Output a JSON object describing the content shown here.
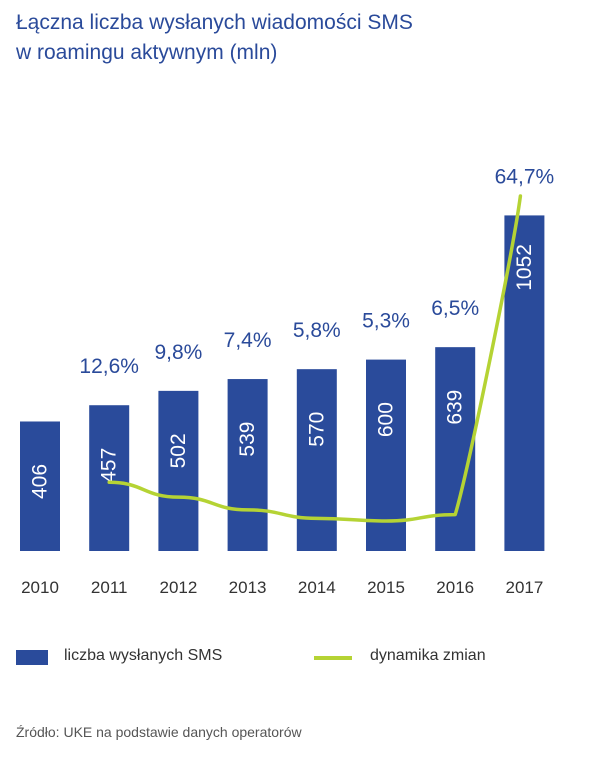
{
  "title_line1": "Łączna liczba wysłanych wiadomości SMS",
  "title_line2": "w roamingu aktywnym (mln)",
  "legend": {
    "bars_label": "liczba wysłanych SMS",
    "line_label": "dynamika zmian"
  },
  "source": "Źródło: UKE na podstawie danych operatorów",
  "colors": {
    "bar": "#2a4b9b",
    "line": "#b5d334",
    "title": "#2a4a9a",
    "growth_label": "#2a4a9a",
    "axis_label": "#333333",
    "bar_label": "#ffffff"
  },
  "chart_data": {
    "type": "bar",
    "categories": [
      "2010",
      "2011",
      "2012",
      "2013",
      "2014",
      "2015",
      "2016",
      "2017"
    ],
    "series": [
      {
        "name": "liczba wysłanych SMS",
        "type": "bar",
        "values": [
          406,
          457,
          502,
          539,
          570,
          600,
          639,
          1052
        ],
        "labels": [
          "406",
          "457",
          "502",
          "539",
          "570",
          "600",
          "639",
          "1052"
        ]
      },
      {
        "name": "dynamika zmian",
        "type": "line",
        "values": [
          null,
          12.6,
          9.8,
          7.4,
          5.8,
          5.3,
          6.5,
          64.7
        ],
        "labels": [
          "",
          "12,6%",
          "9,8%",
          "7,4%",
          "5,8%",
          "5,3%",
          "6,5%",
          "64,7%"
        ]
      }
    ],
    "ylim": [
      0,
      1100
    ],
    "grid": false,
    "legend_position": "bottom"
  }
}
